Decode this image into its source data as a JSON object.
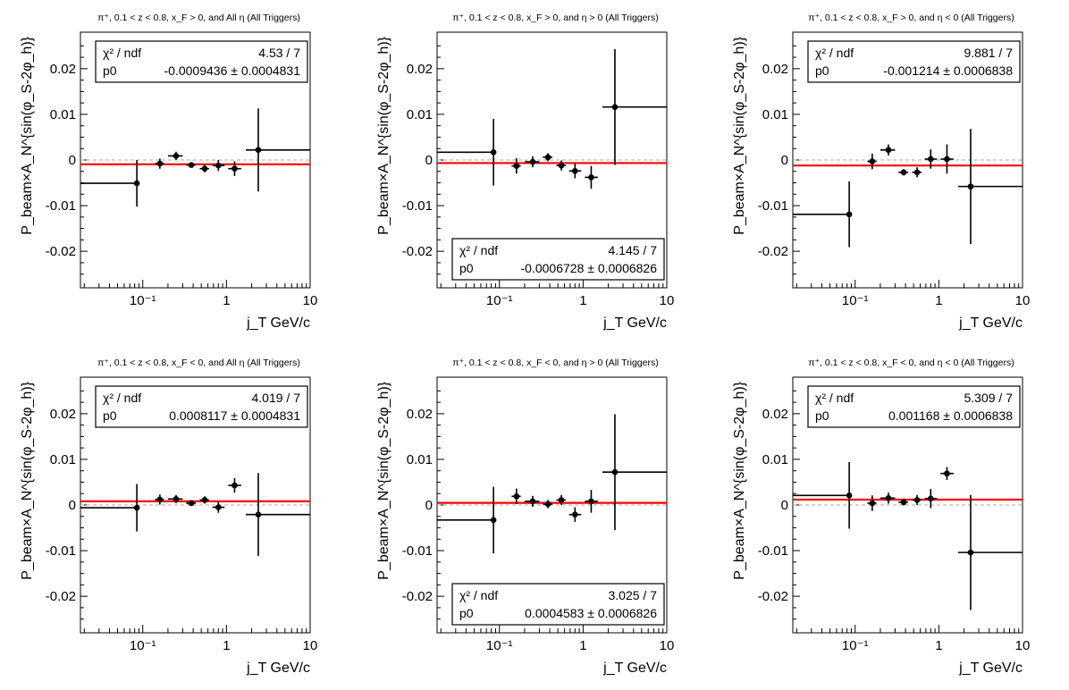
{
  "chart_data": [
    {
      "type": "scatter",
      "title": "π⁺, 0.1 < z < 0.8, x_F > 0, and All η (All Triggers)",
      "xlabel": "j_T GeV/c",
      "ylabel": "P_beam×A_N^{sin(φ_S-2φ_h)}",
      "xscale": "log",
      "xlim": [
        0.018,
        10
      ],
      "ylim": [
        -0.028,
        0.028
      ],
      "xticklabels": [
        "10⁻¹",
        "1",
        "10"
      ],
      "yticklabels": [
        "-0.02",
        "-0.01",
        "0",
        "0.01",
        "0.02"
      ],
      "fit": {
        "chi2_label": "χ² / ndf",
        "chi2_value": "4.53 / 7",
        "p0_label": "p0",
        "p0_value": "-0.0009436 ± 0.0004831",
        "value": -0.0009436,
        "box": "top"
      },
      "points": [
        {
          "x": 0.085,
          "y": -0.0051,
          "xlo": 0.018,
          "xhi": 0.09,
          "yerr": 0.0051
        },
        {
          "x": 0.16,
          "y": -0.0008,
          "xlo": 0.14,
          "xhi": 0.18,
          "yerr": 0.0011
        },
        {
          "x": 0.25,
          "y": 0.0009,
          "xlo": 0.2,
          "xhi": 0.3,
          "yerr": 0.0009
        },
        {
          "x": 0.38,
          "y": -0.0011,
          "xlo": 0.33,
          "xhi": 0.43,
          "yerr": 0.0004
        },
        {
          "x": 0.55,
          "y": -0.0019,
          "xlo": 0.48,
          "xhi": 0.62,
          "yerr": 0.0008
        },
        {
          "x": 0.8,
          "y": -0.0012,
          "xlo": 0.68,
          "xhi": 0.95,
          "yerr": 0.0012
        },
        {
          "x": 1.25,
          "y": -0.0019,
          "xlo": 1.05,
          "xhi": 1.5,
          "yerr": 0.0016
        },
        {
          "x": 2.4,
          "y": 0.0022,
          "xlo": 1.7,
          "xhi": 10,
          "yerr": 0.0091
        }
      ]
    },
    {
      "type": "scatter",
      "title": "π⁺, 0.1 < z < 0.8, x_F > 0, and η > 0 (All Triggers)",
      "xlabel": "j_T GeV/c",
      "ylabel": "P_beam×A_N^{sin(φ_S-2φ_h)}",
      "xscale": "log",
      "xlim": [
        0.018,
        10
      ],
      "ylim": [
        -0.028,
        0.028
      ],
      "xticklabels": [
        "10⁻¹",
        "1",
        "10"
      ],
      "yticklabels": [
        "-0.02",
        "-0.01",
        "0",
        "0.01",
        "0.02"
      ],
      "fit": {
        "chi2_label": "χ² / ndf",
        "chi2_value": "4.145 / 7",
        "p0_label": "p0",
        "p0_value": "-0.0006728 ± 0.0006826",
        "value": -0.0006728,
        "box": "bottom"
      },
      "points": [
        {
          "x": 0.085,
          "y": 0.0017,
          "xlo": 0.018,
          "xhi": 0.09,
          "yerr": 0.0073
        },
        {
          "x": 0.16,
          "y": -0.0013,
          "xlo": 0.14,
          "xhi": 0.18,
          "yerr": 0.0017
        },
        {
          "x": 0.25,
          "y": -0.0004,
          "xlo": 0.2,
          "xhi": 0.3,
          "yerr": 0.0012
        },
        {
          "x": 0.38,
          "y": 0.0006,
          "xlo": 0.33,
          "xhi": 0.43,
          "yerr": 0.0009
        },
        {
          "x": 0.55,
          "y": -0.0012,
          "xlo": 0.48,
          "xhi": 0.62,
          "yerr": 0.0011
        },
        {
          "x": 0.8,
          "y": -0.0024,
          "xlo": 0.68,
          "xhi": 0.95,
          "yerr": 0.0016
        },
        {
          "x": 1.25,
          "y": -0.0038,
          "xlo": 1.05,
          "xhi": 1.5,
          "yerr": 0.0025
        },
        {
          "x": 2.4,
          "y": 0.0116,
          "xlo": 1.7,
          "xhi": 10,
          "yerr": 0.0127
        }
      ]
    },
    {
      "type": "scatter",
      "title": "π⁺, 0.1 < z < 0.8, x_F > 0, and η < 0 (All Triggers)",
      "xlabel": "j_T GeV/c",
      "ylabel": "P_beam×A_N^{sin(φ_S-2φ_h)}",
      "xscale": "log",
      "xlim": [
        0.018,
        10
      ],
      "ylim": [
        -0.028,
        0.028
      ],
      "xticklabels": [
        "10⁻¹",
        "1",
        "10"
      ],
      "yticklabels": [
        "-0.02",
        "-0.01",
        "0",
        "0.01",
        "0.02"
      ],
      "fit": {
        "chi2_label": "χ² / ndf",
        "chi2_value": "9.881 / 7",
        "p0_label": "p0",
        "p0_value": "-0.001214 ± 0.0006838",
        "value": -0.001214,
        "box": "top"
      },
      "points": [
        {
          "x": 0.085,
          "y": -0.0119,
          "xlo": 0.018,
          "xhi": 0.09,
          "yerr": 0.0072
        },
        {
          "x": 0.16,
          "y": -0.0003,
          "xlo": 0.14,
          "xhi": 0.18,
          "yerr": 0.0017
        },
        {
          "x": 0.25,
          "y": 0.0022,
          "xlo": 0.2,
          "xhi": 0.3,
          "yerr": 0.0012
        },
        {
          "x": 0.38,
          "y": -0.0027,
          "xlo": 0.33,
          "xhi": 0.43,
          "yerr": 0.0007
        },
        {
          "x": 0.55,
          "y": -0.0027,
          "xlo": 0.48,
          "xhi": 0.62,
          "yerr": 0.0011
        },
        {
          "x": 0.8,
          "y": 0.0002,
          "xlo": 0.68,
          "xhi": 0.95,
          "yerr": 0.0021
        },
        {
          "x": 1.25,
          "y": 0.0002,
          "xlo": 1.05,
          "xhi": 1.5,
          "yerr": 0.0032
        },
        {
          "x": 2.4,
          "y": -0.0058,
          "xlo": 1.7,
          "xhi": 10,
          "yerr": 0.0126
        }
      ]
    },
    {
      "type": "scatter",
      "title": "π⁺, 0.1 < z < 0.8, x_F < 0, and All η (All Triggers)",
      "xlabel": "j_T GeV/c",
      "ylabel": "P_beam×A_N^{sin(φ_S-2φ_h)}",
      "xscale": "log",
      "xlim": [
        0.018,
        10
      ],
      "ylim": [
        -0.028,
        0.028
      ],
      "xticklabels": [
        "10⁻¹",
        "1",
        "10"
      ],
      "yticklabels": [
        "-0.02",
        "-0.01",
        "0",
        "0.01",
        "0.02"
      ],
      "fit": {
        "chi2_label": "χ² / ndf",
        "chi2_value": "4.019 / 7",
        "p0_label": "p0",
        "p0_value": "0.0008117 ± 0.0004831",
        "value": 0.0008117,
        "box": "top"
      },
      "points": [
        {
          "x": 0.085,
          "y": -0.0006,
          "xlo": 0.018,
          "xhi": 0.09,
          "yerr": 0.0052
        },
        {
          "x": 0.16,
          "y": 0.0012,
          "xlo": 0.14,
          "xhi": 0.18,
          "yerr": 0.0011
        },
        {
          "x": 0.25,
          "y": 0.0013,
          "xlo": 0.2,
          "xhi": 0.3,
          "yerr": 0.0009
        },
        {
          "x": 0.38,
          "y": 0.0004,
          "xlo": 0.33,
          "xhi": 0.43,
          "yerr": 0.0004
        },
        {
          "x": 0.55,
          "y": 0.0011,
          "xlo": 0.48,
          "xhi": 0.62,
          "yerr": 0.0008
        },
        {
          "x": 0.8,
          "y": -0.0005,
          "xlo": 0.68,
          "xhi": 0.95,
          "yerr": 0.0012
        },
        {
          "x": 1.25,
          "y": 0.0043,
          "xlo": 1.05,
          "xhi": 1.5,
          "yerr": 0.0016
        },
        {
          "x": 2.4,
          "y": -0.0021,
          "xlo": 1.7,
          "xhi": 10,
          "yerr": 0.0091
        }
      ]
    },
    {
      "type": "scatter",
      "title": "π⁺, 0.1 < z < 0.8, x_F < 0, and η > 0 (All Triggers)",
      "xlabel": "j_T GeV/c",
      "ylabel": "P_beam×A_N^{sin(φ_S-2φ_h)}",
      "xscale": "log",
      "xlim": [
        0.018,
        10
      ],
      "ylim": [
        -0.028,
        0.028
      ],
      "xticklabels": [
        "10⁻¹",
        "1",
        "10"
      ],
      "yticklabels": [
        "-0.02",
        "-0.01",
        "0",
        "0.01",
        "0.02"
      ],
      "fit": {
        "chi2_label": "χ² / ndf",
        "chi2_value": "3.025 / 7",
        "p0_label": "p0",
        "p0_value": "0.0004583 ± 0.0006826",
        "value": 0.0004583,
        "box": "bottom"
      },
      "points": [
        {
          "x": 0.085,
          "y": -0.0033,
          "xlo": 0.018,
          "xhi": 0.09,
          "yerr": 0.0073
        },
        {
          "x": 0.16,
          "y": 0.0019,
          "xlo": 0.14,
          "xhi": 0.18,
          "yerr": 0.0017
        },
        {
          "x": 0.25,
          "y": 0.0008,
          "xlo": 0.2,
          "xhi": 0.3,
          "yerr": 0.0012
        },
        {
          "x": 0.38,
          "y": 0.0002,
          "xlo": 0.33,
          "xhi": 0.43,
          "yerr": 0.0009
        },
        {
          "x": 0.55,
          "y": 0.0011,
          "xlo": 0.48,
          "xhi": 0.62,
          "yerr": 0.0011
        },
        {
          "x": 0.8,
          "y": -0.0021,
          "xlo": 0.68,
          "xhi": 0.95,
          "yerr": 0.0016
        },
        {
          "x": 1.25,
          "y": 0.0008,
          "xlo": 1.05,
          "xhi": 1.5,
          "yerr": 0.0025
        },
        {
          "x": 2.4,
          "y": 0.0072,
          "xlo": 1.7,
          "xhi": 10,
          "yerr": 0.0127
        }
      ]
    },
    {
      "type": "scatter",
      "title": "π⁺, 0.1 < z < 0.8, x_F < 0, and η < 0 (All Triggers)",
      "xlabel": "j_T GeV/c",
      "ylabel": "P_beam×A_N^{sin(φ_S-2φ_h)}",
      "xscale": "log",
      "xlim": [
        0.018,
        10
      ],
      "ylim": [
        -0.028,
        0.028
      ],
      "xticklabels": [
        "10⁻¹",
        "1",
        "10"
      ],
      "yticklabels": [
        "-0.02",
        "-0.01",
        "0",
        "0.01",
        "0.02"
      ],
      "fit": {
        "chi2_label": "χ² / ndf",
        "chi2_value": "5.309 / 7",
        "p0_label": "p0",
        "p0_value": "0.001168 ± 0.0006838",
        "value": 0.001168,
        "box": "top"
      },
      "points": [
        {
          "x": 0.085,
          "y": 0.0021,
          "xlo": 0.018,
          "xhi": 0.09,
          "yerr": 0.0073
        },
        {
          "x": 0.16,
          "y": 0.0004,
          "xlo": 0.14,
          "xhi": 0.18,
          "yerr": 0.0017
        },
        {
          "x": 0.25,
          "y": 0.0015,
          "xlo": 0.2,
          "xhi": 0.3,
          "yerr": 0.0012
        },
        {
          "x": 0.38,
          "y": 0.0006,
          "xlo": 0.33,
          "xhi": 0.43,
          "yerr": 0.0007
        },
        {
          "x": 0.55,
          "y": 0.0011,
          "xlo": 0.48,
          "xhi": 0.62,
          "yerr": 0.0011
        },
        {
          "x": 0.8,
          "y": 0.0014,
          "xlo": 0.68,
          "xhi": 0.95,
          "yerr": 0.0021
        },
        {
          "x": 1.25,
          "y": 0.0069,
          "xlo": 1.05,
          "xhi": 1.5,
          "yerr": 0.0014
        },
        {
          "x": 2.4,
          "y": -0.0104,
          "xlo": 1.7,
          "xhi": 10,
          "yerr": 0.0126
        }
      ]
    }
  ]
}
